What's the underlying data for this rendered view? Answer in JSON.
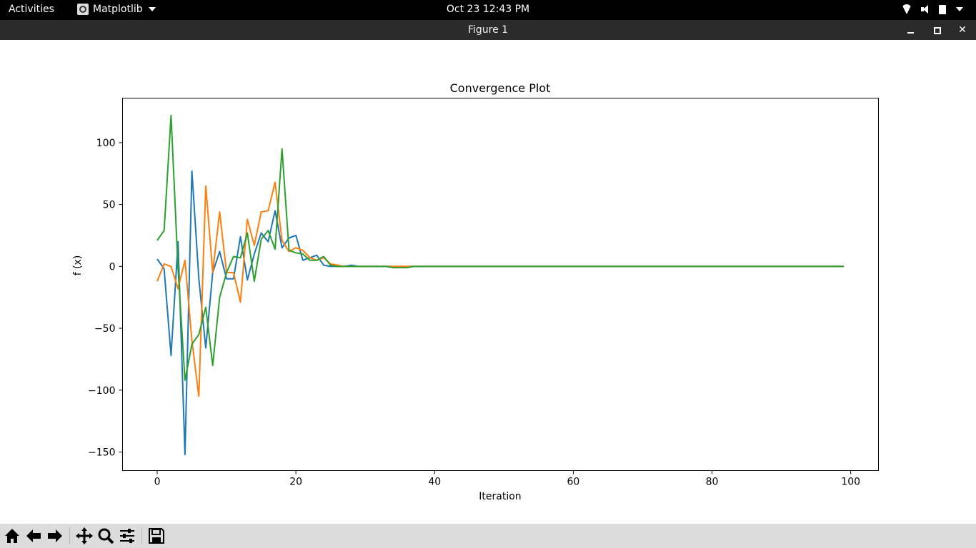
{
  "topbar": {
    "activities": "Activities",
    "app_name": "Matplotlib",
    "clock": "Oct 23  12:43 PM"
  },
  "window": {
    "title": "Figure 1"
  },
  "toolbar": {
    "icons": [
      "home-icon",
      "back-arrow-icon",
      "forward-arrow-icon",
      "pan-icon",
      "zoom-icon",
      "configure-subplots-icon",
      "save-icon"
    ]
  },
  "chart_data": {
    "type": "line",
    "title": "Convergence Plot",
    "xlabel": "Iteration",
    "ylabel": "f (x)",
    "xlim": [
      -5,
      104
    ],
    "ylim": [
      -165,
      136
    ],
    "xticks": [
      0,
      20,
      40,
      60,
      80,
      100
    ],
    "yticks": [
      -150,
      -100,
      -50,
      0,
      50,
      100
    ],
    "grid": false,
    "series": [
      {
        "color": "#1f77b4",
        "x": [
          0,
          1,
          2,
          3,
          4,
          5,
          6,
          7,
          8,
          9,
          10,
          11,
          12,
          13,
          14,
          15,
          16,
          17,
          18,
          19,
          20,
          21,
          22,
          23,
          24,
          25,
          26,
          27,
          28,
          29,
          30,
          31,
          32,
          33,
          34,
          35,
          36,
          37,
          38,
          39,
          40,
          41,
          42,
          43,
          44,
          45,
          46,
          47,
          48,
          49,
          50,
          51,
          52,
          53,
          54,
          55,
          56,
          57,
          58,
          59,
          60,
          61,
          62,
          63,
          64,
          65,
          66,
          67,
          68,
          69,
          70,
          71,
          72,
          73,
          74,
          75,
          76,
          77,
          78,
          79,
          80,
          81,
          82,
          83,
          84,
          85,
          86,
          87,
          88,
          89,
          90,
          91,
          92,
          93,
          94,
          95,
          96,
          97,
          98,
          99
        ],
        "values": [
          6,
          -2,
          -72,
          20,
          -152,
          77,
          -10,
          -66,
          -5,
          12,
          -10,
          -10,
          24,
          -11,
          10,
          27,
          20,
          45,
          15,
          23,
          25,
          5,
          7,
          9,
          1,
          0,
          0,
          0,
          1,
          0,
          0,
          0,
          0,
          0,
          0,
          0,
          0,
          0,
          0,
          0,
          0,
          0,
          0,
          0,
          0,
          0,
          0,
          0,
          0,
          0,
          0,
          0,
          0,
          0,
          0,
          0,
          0,
          0,
          0,
          0,
          0,
          0,
          0,
          0,
          0,
          0,
          0,
          0,
          0,
          0,
          0,
          0,
          0,
          0,
          0,
          0,
          0,
          0,
          0,
          0,
          0,
          0,
          0,
          0,
          0,
          0,
          0,
          0,
          0,
          0,
          0,
          0,
          0,
          0,
          0,
          0,
          0,
          0,
          0,
          0
        ]
      },
      {
        "color": "#ff7f0e",
        "x": [
          0,
          1,
          2,
          3,
          4,
          5,
          6,
          7,
          8,
          9,
          10,
          11,
          12,
          13,
          14,
          15,
          16,
          17,
          18,
          19,
          20,
          21,
          22,
          23,
          24,
          25,
          26,
          27,
          28,
          29,
          30,
          31,
          32,
          33,
          34,
          35,
          36,
          37,
          38,
          39,
          40,
          41,
          42,
          43,
          44,
          45,
          46,
          47,
          48,
          49,
          50,
          51,
          52,
          53,
          54,
          55,
          56,
          57,
          58,
          59,
          60,
          61,
          62,
          63,
          64,
          65,
          66,
          67,
          68,
          69,
          70,
          71,
          72,
          73,
          74,
          75,
          76,
          77,
          78,
          79,
          80,
          81,
          82,
          83,
          84,
          85,
          86,
          87,
          88,
          89,
          90,
          91,
          92,
          93,
          94,
          95,
          96,
          97,
          98,
          99
        ],
        "values": [
          -12,
          2,
          0,
          -18,
          5,
          -60,
          -105,
          65,
          -5,
          44,
          -5,
          -5,
          -29,
          38,
          17,
          44,
          45,
          68,
          21,
          12,
          15,
          13,
          7,
          5,
          7,
          2,
          1,
          0,
          0,
          0,
          0,
          0,
          0,
          0,
          0,
          0,
          0,
          0,
          0,
          0,
          0,
          0,
          0,
          0,
          0,
          0,
          0,
          0,
          0,
          0,
          0,
          0,
          0,
          0,
          0,
          0,
          0,
          0,
          0,
          0,
          0,
          0,
          0,
          0,
          0,
          0,
          0,
          0,
          0,
          0,
          0,
          0,
          0,
          0,
          0,
          0,
          0,
          0,
          0,
          0,
          0,
          0,
          0,
          0,
          0,
          0,
          0,
          0,
          0,
          0,
          0,
          0,
          0,
          0,
          0,
          0,
          0,
          0,
          0,
          0
        ]
      },
      {
        "color": "#2ca02c",
        "x": [
          0,
          1,
          2,
          3,
          4,
          5,
          6,
          7,
          8,
          9,
          10,
          11,
          12,
          13,
          14,
          15,
          16,
          17,
          18,
          19,
          20,
          21,
          22,
          23,
          24,
          25,
          26,
          27,
          28,
          29,
          30,
          31,
          32,
          33,
          34,
          35,
          36,
          37,
          38,
          39,
          40,
          41,
          42,
          43,
          44,
          45,
          46,
          47,
          48,
          49,
          50,
          51,
          52,
          53,
          54,
          55,
          56,
          57,
          58,
          59,
          60,
          61,
          62,
          63,
          64,
          65,
          66,
          67,
          68,
          69,
          70,
          71,
          72,
          73,
          74,
          75,
          76,
          77,
          78,
          79,
          80,
          81,
          82,
          83,
          84,
          85,
          86,
          87,
          88,
          89,
          90,
          91,
          92,
          93,
          94,
          95,
          96,
          97,
          98,
          99
        ],
        "values": [
          21,
          29,
          122,
          -2,
          -92,
          -63,
          -55,
          -33,
          -80,
          -25,
          -5,
          8,
          7,
          27,
          -12,
          22,
          29,
          14,
          95,
          13,
          11,
          10,
          5,
          5,
          8,
          1,
          0,
          0,
          0,
          0,
          0,
          0,
          0,
          0,
          -1,
          -1,
          -1,
          0,
          0,
          0,
          0,
          0,
          0,
          0,
          0,
          0,
          0,
          0,
          0,
          0,
          0,
          0,
          0,
          0,
          0,
          0,
          0,
          0,
          0,
          0,
          0,
          0,
          0,
          0,
          0,
          0,
          0,
          0,
          0,
          0,
          0,
          0,
          0,
          0,
          0,
          0,
          0,
          0,
          0,
          0,
          0,
          0,
          0,
          0,
          0,
          0,
          0,
          0,
          0,
          0,
          0,
          0,
          0,
          0,
          0,
          0,
          0,
          0,
          0,
          0
        ]
      }
    ]
  }
}
